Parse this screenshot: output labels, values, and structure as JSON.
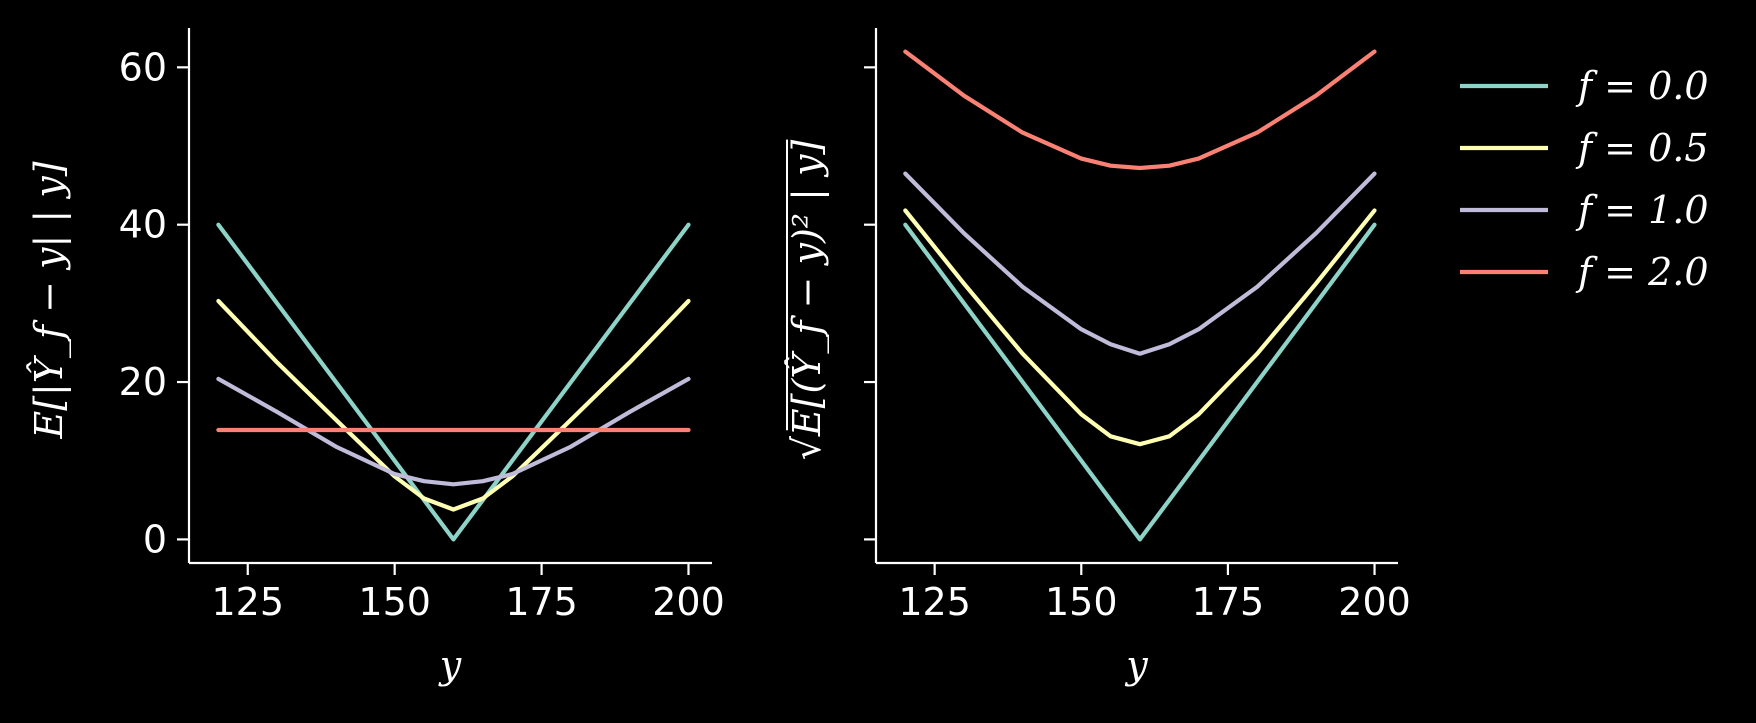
{
  "chart_data": [
    {
      "type": "line",
      "xlabel": "y",
      "ylabel": "E[|Ŷ_f − y| | y]",
      "xlim": [
        115,
        204
      ],
      "ylim": [
        -3,
        65
      ],
      "xticks": [
        125,
        150,
        175,
        200
      ],
      "yticks": [
        0,
        20,
        40,
        60
      ],
      "grid": false,
      "x": [
        120,
        130,
        140,
        150,
        155,
        160,
        165,
        170,
        180,
        190,
        200
      ],
      "series": [
        {
          "name": "f = 0.0",
          "values": [
            40,
            30,
            20,
            10,
            5,
            0,
            5,
            10,
            20,
            30,
            40
          ]
        },
        {
          "name": "f = 0.5",
          "values": [
            30.3,
            22.5,
            15.2,
            8.0,
            5.2,
            3.8,
            5.2,
            8.0,
            15.2,
            22.5,
            30.3
          ]
        },
        {
          "name": "f = 1.0",
          "values": [
            20.4,
            16.2,
            11.8,
            8.3,
            7.4,
            7.0,
            7.4,
            8.3,
            11.8,
            16.2,
            20.4
          ]
        },
        {
          "name": "f = 2.0",
          "values": [
            13.9,
            13.9,
            13.9,
            13.9,
            13.9,
            13.9,
            13.9,
            13.9,
            13.9,
            13.9,
            13.9
          ]
        }
      ]
    },
    {
      "type": "line",
      "xlabel": "y",
      "ylabel": "√E[(Ŷ_f − y)² | y]",
      "xlim": [
        115,
        204
      ],
      "ylim": [
        -3,
        65
      ],
      "xticks": [
        125,
        150,
        175,
        200
      ],
      "yticks": [
        0,
        20,
        40,
        60
      ],
      "ytick_labels_shown": false,
      "grid": false,
      "x": [
        120,
        130,
        140,
        150,
        155,
        160,
        165,
        170,
        180,
        190,
        200
      ],
      "series": [
        {
          "name": "f = 0.0",
          "values": [
            40,
            30,
            20,
            10,
            5,
            0,
            5,
            10,
            20,
            30,
            40
          ]
        },
        {
          "name": "f = 0.5",
          "values": [
            41.8,
            32.5,
            23.6,
            15.9,
            13.1,
            12.1,
            13.1,
            15.9,
            23.6,
            32.5,
            41.8
          ]
        },
        {
          "name": "f = 1.0",
          "values": [
            46.5,
            38.9,
            32.1,
            26.7,
            24.8,
            23.6,
            24.8,
            26.7,
            32.1,
            38.9,
            46.5
          ]
        },
        {
          "name": "f = 2.0",
          "values": [
            62.0,
            56.4,
            51.7,
            48.4,
            47.5,
            47.2,
            47.5,
            48.4,
            51.7,
            56.4,
            62.0
          ]
        }
      ]
    }
  ],
  "legend": {
    "placement": "right",
    "entries": [
      {
        "label": "f = 0.0",
        "color": "#8dd3c7"
      },
      {
        "label": "f = 0.5",
        "color": "#feffb3"
      },
      {
        "label": "f = 1.0",
        "color": "#bfbbd9"
      },
      {
        "label": "f = 2.0",
        "color": "#fa8174"
      }
    ]
  },
  "colors": {
    "background": "#000000",
    "axis": "#ffffff",
    "text": "#ffffff"
  }
}
